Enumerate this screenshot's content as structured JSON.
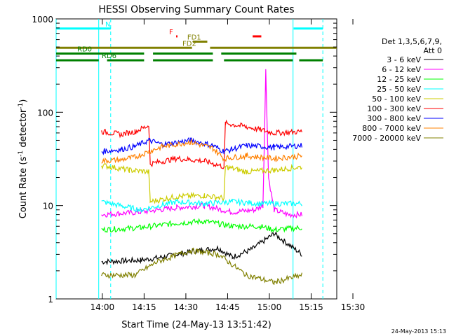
{
  "chart_data": {
    "type": "line",
    "title": "HESSI Observing Summary Count Rates",
    "xlabel": "Start Time (24-May-13 13:51:42)",
    "ylabel_main": "Count Rate (s",
    "ylabel_sup1": "-1",
    "ylabel_mid": " detector",
    "ylabel_sup2": "-1",
    "ylabel_end": ")",
    "yscale": "log",
    "ylim": [
      1,
      1000
    ],
    "xlim_minutes": [
      -8.3,
      92.5
    ],
    "x_unit": "minutes after 13:51:42",
    "x_ticks": [
      {
        "label": "14:00",
        "value": 8.3
      },
      {
        "label": "14:15",
        "value": 23.3
      },
      {
        "label": "14:30",
        "value": 38.3
      },
      {
        "label": "14:45",
        "value": 53.3
      },
      {
        "label": "15:00",
        "value": 68.3
      },
      {
        "label": "15:15",
        "value": 83.3
      },
      {
        "label": "15:30",
        "value": 98.3
      }
    ],
    "y_ticks": [
      {
        "label": "1",
        "value": 1
      },
      {
        "label": "10",
        "value": 10
      },
      {
        "label": "100",
        "value": 100
      },
      {
        "label": "1000",
        "value": 1000
      }
    ],
    "legend_header": [
      "Det 1,3,5,6,7,9,",
      "Att 0"
    ],
    "legend_position": "right",
    "series": [
      {
        "name": "3 - 6 keV",
        "color": "#000000",
        "segments": [
          [
            [
              8,
              2.5
            ],
            [
              22,
              2.6
            ],
            [
              30,
              2.8
            ],
            [
              40,
              3.2
            ],
            [
              50,
              3.5
            ],
            [
              55,
              2.8
            ],
            [
              62,
              3.4
            ],
            [
              70,
              5
            ],
            [
              80,
              3
            ]
          ]
        ]
      },
      {
        "name": "6 - 12 keV",
        "color": "#ff00ff",
        "segments": [
          [
            [
              8,
              8
            ],
            [
              22,
              8.5
            ],
            [
              35,
              9.5
            ],
            [
              45,
              10
            ],
            [
              55,
              8.5
            ],
            [
              63,
              9
            ],
            [
              66,
              10
            ],
            [
              67,
              280
            ],
            [
              68,
              20
            ],
            [
              70,
              9
            ],
            [
              75,
              8
            ],
            [
              80,
              8
            ]
          ]
        ]
      },
      {
        "name": "12 - 25 keV",
        "color": "#00ff00",
        "segments": [
          [
            [
              8,
              5.5
            ],
            [
              22,
              5.8
            ],
            [
              35,
              6.5
            ],
            [
              45,
              6.8
            ],
            [
              55,
              6
            ],
            [
              65,
              6
            ],
            [
              70,
              5.5
            ],
            [
              80,
              5.8
            ]
          ]
        ]
      },
      {
        "name": "25 - 50 keV",
        "color": "#00ffff",
        "segments": [
          [
            [
              8,
              11
            ],
            [
              22,
              9
            ],
            [
              35,
              11
            ],
            [
              45,
              10.5
            ],
            [
              55,
              11
            ],
            [
              65,
              10.5
            ],
            [
              80,
              10.5
            ]
          ]
        ]
      },
      {
        "name": "50 - 100 keV",
        "color": "#cccc00",
        "segments": [
          [
            [
              8,
              27
            ],
            [
              18,
              24
            ],
            [
              25,
              23
            ],
            [
              25.5,
              11
            ],
            [
              35,
              12.5
            ],
            [
              45,
              12.8
            ],
            [
              52,
              12
            ],
            [
              52.5,
              26
            ],
            [
              60,
              23
            ],
            [
              70,
              24
            ],
            [
              80,
              26
            ]
          ]
        ]
      },
      {
        "name": "100 - 300 keV",
        "color": "#ff0000",
        "segments": [
          [
            [
              8,
              62
            ],
            [
              15,
              58
            ],
            [
              20,
              62
            ],
            [
              25,
              72
            ],
            [
              25.5,
              28
            ],
            [
              35,
              32
            ],
            [
              45,
              30
            ],
            [
              52,
              26
            ],
            [
              52.5,
              76
            ],
            [
              60,
              70
            ],
            [
              70,
              60
            ],
            [
              80,
              62
            ]
          ]
        ]
      },
      {
        "name": "300 - 800 keV",
        "color": "#0000ff",
        "segments": [
          [
            [
              8,
              38
            ],
            [
              15,
              40
            ],
            [
              20,
              43
            ],
            [
              25,
              50
            ],
            [
              30,
              45
            ],
            [
              40,
              50
            ],
            [
              48,
              44
            ],
            [
              52,
              38
            ],
            [
              60,
              44
            ],
            [
              70,
              42
            ],
            [
              80,
              44
            ]
          ]
        ]
      },
      {
        "name": "800 - 7000 keV",
        "color": "#ff8000",
        "segments": [
          [
            [
              8,
              30
            ],
            [
              15,
              31
            ],
            [
              20,
              33
            ],
            [
              25,
              38
            ],
            [
              30,
              43
            ],
            [
              40,
              48
            ],
            [
              48,
              41
            ],
            [
              52,
              32
            ],
            [
              60,
              34
            ],
            [
              70,
              32
            ],
            [
              80,
              34
            ]
          ]
        ]
      },
      {
        "name": "7000 - 20000 keV",
        "color": "#808000",
        "segments": [
          [
            [
              8,
              1.8
            ],
            [
              20,
              1.8
            ],
            [
              28,
              2.5
            ],
            [
              40,
              3.3
            ],
            [
              50,
              3
            ],
            [
              60,
              1.8
            ],
            [
              70,
              1.5
            ],
            [
              80,
              1.8
            ]
          ]
        ]
      }
    ],
    "vlines": [
      {
        "x": -8.3,
        "color": "#00ffff",
        "style": "solid"
      },
      {
        "x": 7.0,
        "color": "#00ffff",
        "style": "solid"
      },
      {
        "x": 11.3,
        "color": "#00ffff",
        "style": "dashed"
      },
      {
        "x": 76.8,
        "color": "#00ffff",
        "style": "solid"
      },
      {
        "x": 87.5,
        "color": "#00ffff",
        "style": "dashed"
      }
    ],
    "flag_bars": [
      {
        "label": "N",
        "color": "#00ffff",
        "y": 788,
        "segments": [
          [
            -8.3,
            11.3
          ],
          [
            77,
            87.5
          ]
        ]
      },
      {
        "label": "F",
        "color": "#ff0000",
        "y": 650,
        "segments": [
          [
            34.8,
            35.3
          ],
          [
            62.3,
            65.4
          ]
        ]
      },
      {
        "label": "FD1",
        "color": "#808000",
        "y": 570,
        "segments": [
          [
            40.8,
            46
          ]
        ]
      },
      {
        "label": "FD2",
        "color": "#808000",
        "y": 490,
        "segments": [
          [
            -8.3,
            40.5
          ],
          [
            47,
            92.5
          ]
        ]
      },
      {
        "label": "RD0",
        "color": "#008000",
        "y": 425,
        "segments": [
          [
            -8.3,
            23.3
          ],
          [
            26.5,
            48
          ],
          [
            51,
            78
          ]
        ]
      },
      {
        "label": "RD6",
        "color": "#008000",
        "y": 360,
        "segments": [
          [
            -8.3,
            7
          ],
          [
            10,
            23.3
          ],
          [
            26.5,
            48
          ],
          [
            52,
            76.7
          ],
          [
            79,
            87.5
          ]
        ]
      }
    ],
    "footer_date": "24-May-2013 15:13"
  }
}
